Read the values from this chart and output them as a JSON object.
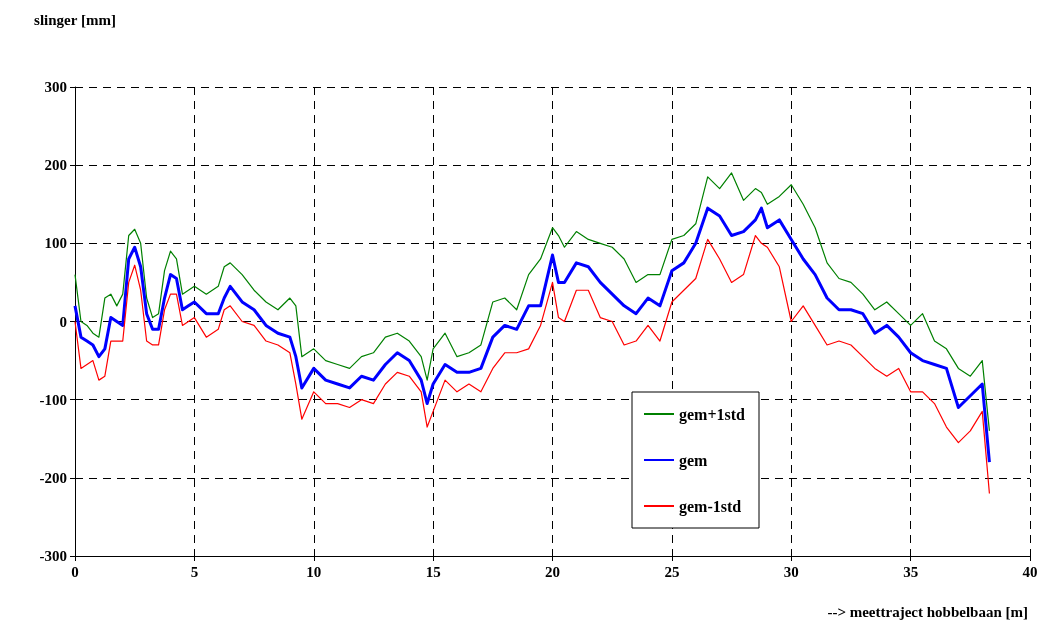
{
  "chart_data": {
    "type": "line",
    "xlabel": "--> meettraject hobbelbaan [m]",
    "ylabel": "slinger [mm]",
    "x": [
      0,
      0.25,
      0.5,
      0.75,
      1,
      1.25,
      1.5,
      1.75,
      2,
      2.25,
      2.5,
      2.75,
      3,
      3.25,
      3.5,
      3.75,
      4,
      4.25,
      4.5,
      4.75,
      5,
      5.5,
      6,
      6.25,
      6.5,
      7,
      7.5,
      8,
      8.5,
      9,
      9.25,
      9.5,
      10,
      10.5,
      11,
      11.5,
      12,
      12.5,
      13,
      13.5,
      14,
      14.5,
      14.75,
      15,
      15.5,
      16,
      16.5,
      17,
      17.5,
      18,
      18.5,
      19,
      19.5,
      20,
      20.25,
      20.5,
      21,
      21.5,
      22,
      22.5,
      23,
      23.5,
      24,
      24.5,
      25,
      25.5,
      26,
      26.5,
      27,
      27.5,
      28,
      28.5,
      28.75,
      29,
      29.5,
      30,
      30.5,
      31,
      31.5,
      32,
      32.5,
      33,
      33.5,
      34,
      34.5,
      35,
      35.5,
      36,
      36.5,
      37,
      37.5,
      38,
      38.3
    ],
    "series": [
      {
        "name": "gem+1std",
        "color": "#008000",
        "values": [
          60,
          0,
          -5,
          -15,
          -20,
          30,
          35,
          20,
          35,
          110,
          118,
          100,
          30,
          5,
          10,
          65,
          90,
          80,
          35,
          40,
          45,
          35,
          45,
          70,
          75,
          60,
          40,
          25,
          15,
          30,
          20,
          -45,
          -35,
          -50,
          -55,
          -60,
          -45,
          -40,
          -20,
          -15,
          -25,
          -45,
          -75,
          -35,
          -15,
          -45,
          -40,
          -30,
          25,
          30,
          15,
          60,
          80,
          120,
          110,
          95,
          115,
          105,
          100,
          95,
          80,
          50,
          60,
          60,
          105,
          110,
          125,
          185,
          170,
          190,
          155,
          170,
          165,
          150,
          160,
          175,
          150,
          120,
          75,
          55,
          50,
          35,
          15,
          25,
          10,
          -5,
          10,
          -25,
          -35,
          -60,
          -70,
          -50,
          -140
        ]
      },
      {
        "name": "gem",
        "color": "#0000ff",
        "values": [
          20,
          -20,
          -25,
          -30,
          -45,
          -35,
          5,
          0,
          -5,
          80,
          95,
          70,
          10,
          -10,
          -10,
          30,
          60,
          55,
          15,
          20,
          25,
          10,
          10,
          30,
          45,
          25,
          15,
          -5,
          -15,
          -20,
          -45,
          -85,
          -60,
          -75,
          -80,
          -85,
          -70,
          -75,
          -55,
          -40,
          -50,
          -75,
          -105,
          -80,
          -55,
          -65,
          -65,
          -60,
          -20,
          -5,
          -10,
          20,
          20,
          85,
          50,
          50,
          75,
          70,
          50,
          35,
          20,
          10,
          30,
          20,
          65,
          75,
          100,
          145,
          135,
          110,
          115,
          130,
          145,
          120,
          130,
          105,
          80,
          60,
          30,
          15,
          15,
          10,
          -15,
          -5,
          -20,
          -40,
          -50,
          -55,
          -60,
          -110,
          -95,
          -80,
          -180
        ]
      },
      {
        "name": "gem-1std",
        "color": "#ff0000",
        "values": [
          0,
          -60,
          -55,
          -50,
          -75,
          -70,
          -25,
          -25,
          -25,
          50,
          72,
          40,
          -25,
          -30,
          -30,
          15,
          35,
          35,
          -5,
          0,
          5,
          -20,
          -10,
          15,
          20,
          0,
          -5,
          -25,
          -30,
          -40,
          -80,
          -125,
          -90,
          -105,
          -105,
          -110,
          -100,
          -105,
          -80,
          -65,
          -70,
          -90,
          -135,
          -115,
          -75,
          -90,
          -80,
          -90,
          -60,
          -40,
          -40,
          -35,
          -5,
          50,
          5,
          0,
          40,
          40,
          5,
          0,
          -30,
          -25,
          -5,
          -25,
          25,
          40,
          55,
          105,
          80,
          50,
          60,
          110,
          100,
          95,
          70,
          0,
          20,
          -5,
          -30,
          -25,
          -30,
          -45,
          -60,
          -70,
          -60,
          -90,
          -90,
          -105,
          -135,
          -155,
          -140,
          -115,
          -220
        ]
      }
    ],
    "xlim": [
      0,
      40
    ],
    "xticks": [
      0,
      5,
      10,
      15,
      20,
      25,
      30,
      35,
      40
    ],
    "ylim": [
      -300,
      300
    ],
    "yticks": [
      -300,
      -200,
      -100,
      0,
      100,
      200,
      300
    ],
    "grid": true,
    "legend": "bottom right",
    "marker": "none",
    "line_style": "solid"
  }
}
